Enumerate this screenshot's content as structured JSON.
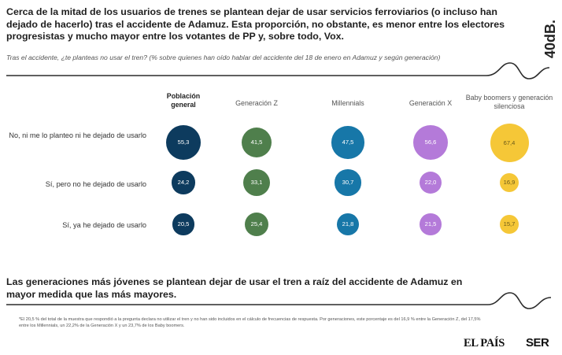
{
  "headline": "Cerca de la mitad de los usuarios de trenes se plantean dejar de usar servicios ferroviarios (o incluso han dejado de hacerlo) tras el accidente de Adamuz. Esta proporción, no obstante, es menor entre los electores progresistas y mucho mayor entre los votantes de PP y, sobre todo, Vox.",
  "brand": "40dB.",
  "subtitle": "Tras el accidente, ¿te planteas no usar el tren? (% sobre quienes han oído hablar del accidente del 18 de enero en Adamuz  y  según generación)",
  "chart_data": {
    "type": "bubble-matrix",
    "unit": "%",
    "columns": [
      "Población general",
      "Generación Z",
      "Millennials",
      "Generación X",
      "Baby boomers y generación silenciosa"
    ],
    "column_colors": [
      "#0d3b5e",
      "#4f7f4c",
      "#1777a8",
      "#b47ad9",
      "#f5c737"
    ],
    "rows": [
      "No, ni me lo planteo ni he dejado de usarlo",
      "Sí, pero no he dejado de usarlo",
      "Sí, ya he dejado de usarlo"
    ],
    "values": [
      [
        "55,3",
        "41,5",
        "47,5",
        "56,6",
        "67,4"
      ],
      [
        "24,2",
        "33,1",
        "30,7",
        "22,0",
        "16,9"
      ],
      [
        "20,5",
        "25,4",
        "21,8",
        "21,5",
        "15,7"
      ]
    ]
  },
  "footer_title": "Las generaciones más jóvenes se plantean dejar de usar el tren a raíz del accidente de Adamuz en mayor medida que las más mayores.",
  "footnote": "*El 20,5 % del total de la muestra que respondió a la pregunta declara no utilizar el tren y no han sido incluidos en el cálculo de frecuencias de respuesta. Por generaciones, este porcentaje es del 16,9 % entre la Generación Z, del 17,5% entre los Millennials, un 22,2% de la Generación X y un 23,7% de los Baby boomers.",
  "logos": {
    "pais": "EL PAÍS",
    "ser": "SER"
  }
}
